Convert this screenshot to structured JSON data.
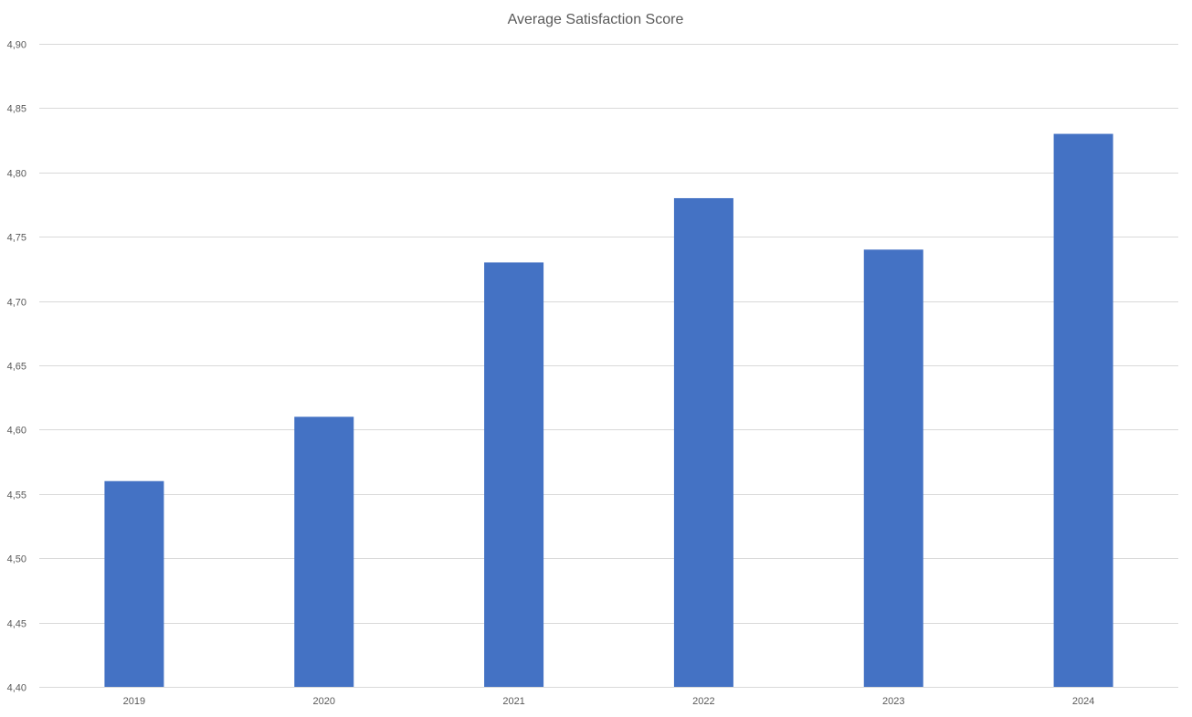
{
  "chart_data": {
    "type": "bar",
    "title": "Average Satisfaction Score",
    "xlabel": "",
    "ylabel": "",
    "categories": [
      "2019",
      "2020",
      "2021",
      "2022",
      "2023",
      "2024"
    ],
    "series": [
      {
        "values": [
          4.56,
          4.61,
          4.73,
          4.78,
          4.74,
          4.83
        ],
        "color": "#4472c4"
      }
    ],
    "ylim": [
      4.4,
      4.9
    ],
    "yticks": [
      "4,40",
      "4,45",
      "4,50",
      "4,55",
      "4,60",
      "4,65",
      "4,70",
      "4,75",
      "4,80",
      "4,85",
      "4,90"
    ],
    "grid": true,
    "legend": "none"
  }
}
